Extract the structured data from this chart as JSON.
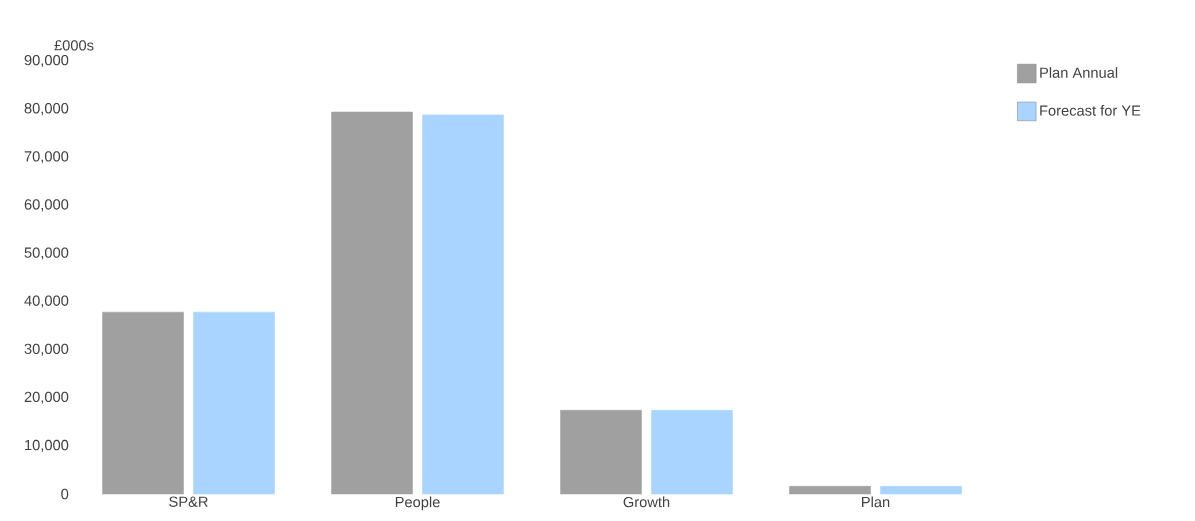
{
  "chart_data": {
    "type": "bar",
    "ylabel": "£000s",
    "categories": [
      "SP&R",
      "People",
      "Growth",
      "Plan"
    ],
    "series": [
      {
        "name": "Plan Annual",
        "color": "#a0a0a0",
        "values": [
          37800,
          79400,
          17400,
          1600
        ]
      },
      {
        "name": "Forecast for YE",
        "color": "#a8d4ff",
        "values": [
          37800,
          78800,
          17400,
          1600
        ]
      }
    ],
    "ylim": [
      0,
      90000
    ],
    "yticks": [
      0,
      {
        "value": 10000,
        "label": "10,000"
      },
      {
        "value": 20000,
        "label": "20,000"
      },
      {
        "value": 30000,
        "label": "30,000"
      },
      {
        "value": 40000,
        "label": "40,000"
      },
      {
        "value": 50000,
        "label": "50,000"
      },
      {
        "value": 60000,
        "label": "60,000"
      },
      {
        "value": 70000,
        "label": "70,000"
      },
      {
        "value": 80000,
        "label": "80,000"
      },
      {
        "value": 90000,
        "label": "90,000"
      }
    ],
    "legend": "top right"
  }
}
